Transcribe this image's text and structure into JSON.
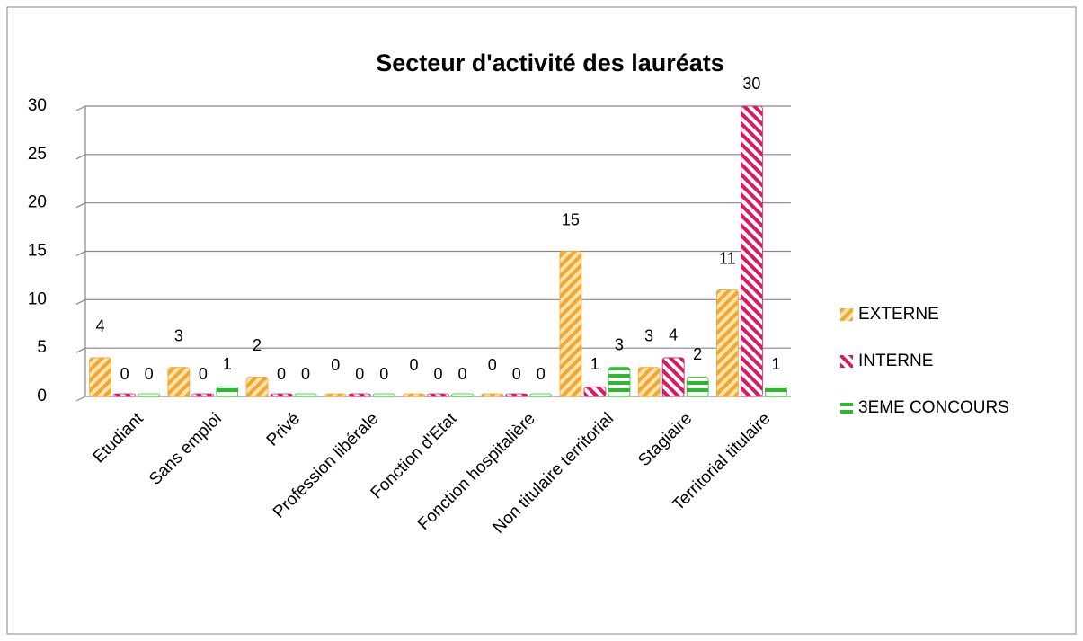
{
  "chart_data": {
    "type": "bar",
    "title": "Secteur d'activité des lauréats",
    "categories": [
      "Etudiant",
      "Sans emploi",
      "Privé",
      "Profession libérale",
      "Fonction d'Etat",
      "Fonction hospitalière",
      "Non titulaire territorial",
      "Stagiaire",
      "Territorial titulaire"
    ],
    "series": [
      {
        "name": "EXTERNE",
        "color": "#f0a830",
        "values": [
          4,
          3,
          2,
          0,
          0,
          0,
          15,
          3,
          11
        ]
      },
      {
        "name": "INTERNE",
        "color": "#d81b60",
        "values": [
          0,
          0,
          0,
          0,
          0,
          0,
          1,
          4,
          30
        ]
      },
      {
        "name": "3EME CONCOURS",
        "color": "#2eb82e",
        "values": [
          0,
          1,
          0,
          0,
          0,
          0,
          3,
          2,
          1
        ]
      }
    ],
    "ylim": [
      0,
      30
    ],
    "yticks": [
      0,
      5,
      10,
      15,
      20,
      25,
      30
    ],
    "grid": true,
    "legend": "right"
  }
}
